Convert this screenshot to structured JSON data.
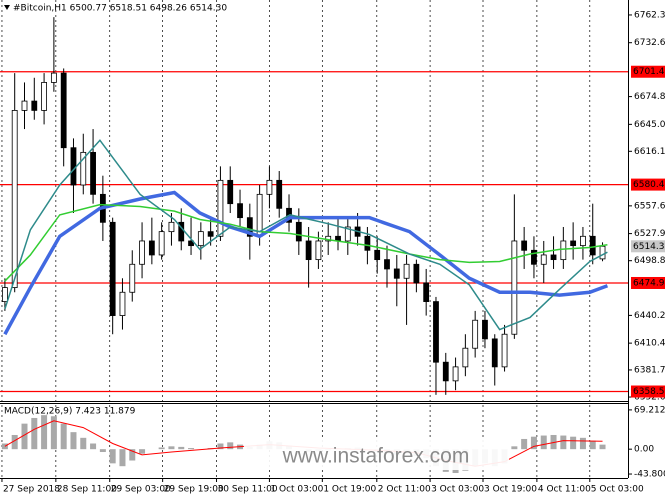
{
  "chart_data": [
    {
      "type": "candlestick",
      "title": "#Bitcoin,H1 6500.77 6518.51 6498.26 6514.30",
      "ohlc": [
        [
          6455,
          6480,
          6445,
          6470
        ],
        [
          6470,
          6700,
          6465,
          6660
        ],
        [
          6660,
          6690,
          6640,
          6670
        ],
        [
          6670,
          6695,
          6650,
          6660
        ],
        [
          6660,
          6700,
          6645,
          6690
        ],
        [
          6690,
          6760,
          6680,
          6700
        ],
        [
          6700,
          6705,
          6600,
          6620
        ],
        [
          6620,
          6630,
          6550,
          6580
        ],
        [
          6580,
          6635,
          6570,
          6615
        ],
        [
          6615,
          6640,
          6560,
          6570
        ],
        [
          6570,
          6590,
          6520,
          6540
        ],
        [
          6540,
          6545,
          6420,
          6440
        ],
        [
          6440,
          6480,
          6425,
          6465
        ],
        [
          6465,
          6510,
          6455,
          6495
        ],
        [
          6495,
          6540,
          6480,
          6520
        ],
        [
          6520,
          6545,
          6495,
          6505
        ],
        [
          6505,
          6540,
          6500,
          6530
        ],
        [
          6530,
          6550,
          6515,
          6540
        ],
        [
          6540,
          6555,
          6510,
          6520
        ],
        [
          6520,
          6545,
          6505,
          6515
        ],
        [
          6515,
          6540,
          6500,
          6530
        ],
        [
          6530,
          6545,
          6515,
          6525
        ],
        [
          6525,
          6600,
          6520,
          6585
        ],
        [
          6585,
          6600,
          6550,
          6560
        ],
        [
          6560,
          6575,
          6535,
          6545
        ],
        [
          6545,
          6560,
          6500,
          6525
        ],
        [
          6525,
          6580,
          6515,
          6570
        ],
        [
          6570,
          6600,
          6555,
          6585
        ],
        [
          6585,
          6595,
          6545,
          6555
        ],
        [
          6555,
          6570,
          6530,
          6540
        ],
        [
          6540,
          6555,
          6505,
          6520
        ],
        [
          6520,
          6535,
          6470,
          6500
        ],
        [
          6500,
          6530,
          6490,
          6520
        ],
        [
          6520,
          6540,
          6505,
          6525
        ],
        [
          6525,
          6545,
          6510,
          6520
        ],
        [
          6520,
          6545,
          6505,
          6535
        ],
        [
          6535,
          6550,
          6515,
          6525
        ],
        [
          6525,
          6535,
          6495,
          6510
        ],
        [
          6510,
          6525,
          6485,
          6500
        ],
        [
          6500,
          6515,
          6470,
          6490
        ],
        [
          6490,
          6505,
          6450,
          6480
        ],
        [
          6480,
          6505,
          6430,
          6495
        ],
        [
          6495,
          6500,
          6465,
          6475
        ],
        [
          6475,
          6490,
          6440,
          6455
        ],
        [
          6455,
          6460,
          6355,
          6390
        ],
        [
          6390,
          6400,
          6355,
          6370
        ],
        [
          6370,
          6395,
          6360,
          6385
        ],
        [
          6385,
          6420,
          6375,
          6405
        ],
        [
          6405,
          6445,
          6395,
          6435
        ],
        [
          6435,
          6445,
          6405,
          6415
        ],
        [
          6415,
          6420,
          6365,
          6385
        ],
        [
          6385,
          6430,
          6380,
          6420
        ],
        [
          6420,
          6570,
          6415,
          6520
        ],
        [
          6520,
          6535,
          6490,
          6510
        ],
        [
          6510,
          6525,
          6480,
          6495
        ],
        [
          6495,
          6520,
          6475,
          6505
        ],
        [
          6505,
          6525,
          6490,
          6500
        ],
        [
          6500,
          6535,
          6490,
          6520
        ],
        [
          6520,
          6540,
          6500,
          6515
        ],
        [
          6515,
          6535,
          6500,
          6525
        ],
        [
          6525,
          6560,
          6495,
          6505
        ],
        [
          6500.77,
          6518.51,
          6498.26,
          6514.3
        ]
      ],
      "up_color": "#ffffff",
      "down_color": "#000000",
      "x": [
        0,
        2.6,
        5.6,
        9.7,
        13.8,
        17.3,
        19.9,
        23,
        26,
        29.1,
        33.2,
        37.2,
        41.3,
        44.4,
        47.4,
        50.5,
        53.6,
        56.6,
        59.7,
        61.5
      ],
      "series": [
        {
          "color": "#4169e1",
          "values": [
            6420,
            6470,
            6525,
            6555,
            6565,
            6572,
            6550,
            6535,
            6525,
            6545,
            6545,
            6545,
            6530,
            6505,
            6480,
            6465,
            6465,
            6462,
            6465,
            6472
          ]
        },
        {
          "color": "#32cd32",
          "values": [
            6477,
            6505,
            6548,
            6559,
            6557,
            6552,
            6543,
            6538,
            6530,
            6528,
            6521,
            6515,
            6506,
            6500,
            6497,
            6498,
            6506,
            6511,
            6513,
            6516
          ]
        },
        {
          "color": "#2e8b8b",
          "values": [
            6447,
            6532,
            6580,
            6628,
            6570,
            6543,
            6511,
            6535,
            6530,
            6548,
            6538,
            6527,
            6506,
            6495,
            6473,
            6425,
            6438,
            6468,
            6498,
            6508
          ]
        }
      ],
      "levels": [
        6701.47,
        6580.45,
        6474.94,
        6358.57
      ],
      "level_color": "#ff0000",
      "last_price": {
        "value": 6514.3,
        "label": "6514.30"
      },
      "xlim": [
        -0.5,
        63.6
      ],
      "xticks": [
        {
          "value": -0.3,
          "label": "27 Sep 2018"
        },
        {
          "value": 5.2,
          "label": "28 Sep 11:00"
        },
        {
          "value": 10.7,
          "label": "29 Sep 03:00"
        },
        {
          "value": 16.1,
          "label": "29 Sep 19:00"
        },
        {
          "value": 21.6,
          "label": "30 Sep 11:00"
        },
        {
          "value": 27.0,
          "label": "1 Oct 03:00"
        },
        {
          "value": 32.4,
          "label": "1 Oct 19:00"
        },
        {
          "value": 37.96,
          "label": "2 Oct 11:00"
        },
        {
          "value": 43.4,
          "label": "3 Oct 03:00"
        },
        {
          "value": 48.8,
          "label": "3 Oct 19:00"
        },
        {
          "value": 54.3,
          "label": "4 Oct 11:00"
        },
        {
          "value": 59.7,
          "label": "5 Oct 03:00"
        }
      ],
      "ylim": [
        6348.4,
        6774.1
      ],
      "yticks": [
        6762.35,
        {
          "value": 6732.6,
          "label": "6732.60"
        },
        {
          "value": 6674.8,
          "label": "6674.80"
        },
        6645.05,
        6616.15,
        6557.65,
        {
          "value": 6527.9,
          "label": "6527.90"
        },
        6498.85,
        {
          "value": 6440.2,
          "label": "6440.20"
        },
        6410.45,
        {
          "value": 6381.7,
          "label": "6381.70"
        },
        6352.65
      ],
      "watermark": "www.instaforex.com"
    },
    {
      "type": "macd",
      "title": "MACD(12,26,9) 7.423 11.879",
      "histogram": [
        10,
        25,
        45,
        55,
        60,
        58,
        45,
        30,
        20,
        10,
        -5,
        -25,
        -30,
        -20,
        -8,
        0,
        3,
        5,
        4,
        2,
        0,
        2,
        10,
        12,
        8,
        4,
        8,
        14,
        12,
        6,
        0,
        -5,
        -4,
        -2,
        0,
        2,
        3,
        0,
        -4,
        -8,
        -10,
        -8,
        -12,
        -16,
        -30,
        -40,
        -42,
        -38,
        -30,
        -25,
        -30,
        -25,
        5,
        18,
        22,
        24,
        25,
        24,
        22,
        20,
        15,
        8
      ],
      "histogram_color": "#a9a9a9",
      "x": [
        0,
        3,
        5,
        8,
        11,
        14,
        17,
        22,
        27,
        32,
        38,
        42,
        45,
        48,
        51,
        54,
        57,
        61
      ],
      "signal": {
        "color": "#ff0000",
        "values": [
          5,
          35,
          50,
          38,
          10,
          -10,
          -5,
          2,
          8,
          2,
          -2,
          -6,
          -20,
          -30,
          -22,
          5,
          15,
          14
        ]
      },
      "ylim": [
        -50.8,
        79.6
      ],
      "yticks": [
        69.212,
        {
          "value": 0,
          "label": "0.00"
        },
        {
          "value": -43.8,
          "label": "-43.800"
        }
      ]
    }
  ]
}
